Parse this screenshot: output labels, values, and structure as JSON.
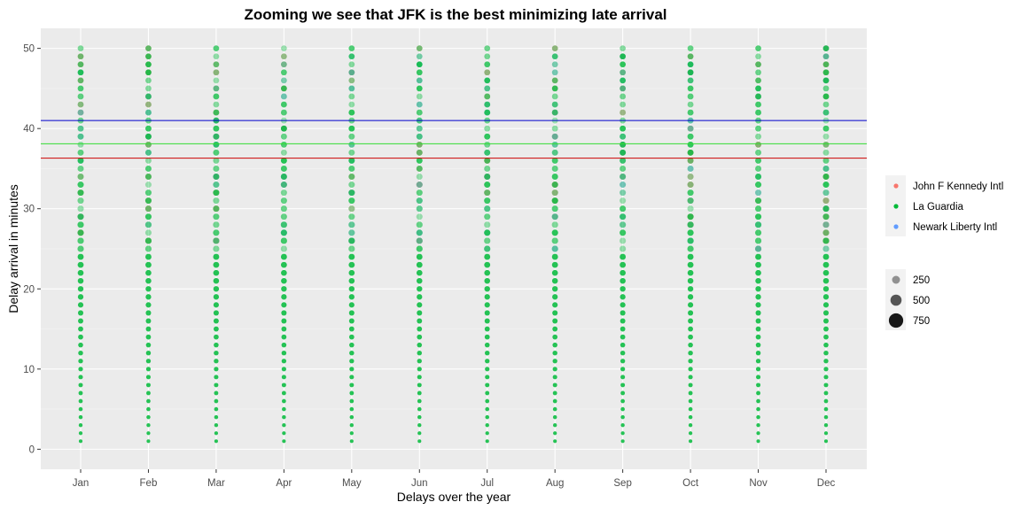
{
  "chart_data": {
    "type": "scatter",
    "title": "Zooming we see that JFK is the best minimizing late arrival",
    "xlabel": "Delays over the year",
    "ylabel": "Delay arrival in minutes",
    "categories": [
      "Jan",
      "Feb",
      "Mar",
      "Apr",
      "May",
      "Jun",
      "Jul",
      "Aug",
      "Sep",
      "Oct",
      "Nov",
      "Dec"
    ],
    "ylim": [
      -2.5,
      52.5
    ],
    "y_ticks": [
      0,
      10,
      20,
      30,
      40,
      50
    ],
    "delay_range": [
      1,
      50
    ],
    "series": [
      {
        "name": "John F Kennedy Intl",
        "color": "#F8766D"
      },
      {
        "name": "La Guardia",
        "color": "#00BA38"
      },
      {
        "name": "Newark Liberty Intl",
        "color": "#619CFF"
      }
    ],
    "size_legend": {
      "values": [
        250,
        500,
        750
      ]
    },
    "reference_lines": [
      {
        "color": "#0000CC",
        "value": 41.0
      },
      {
        "color": "#33DD33",
        "value": 38.1
      },
      {
        "color": "#CC0000",
        "value": 36.3
      }
    ],
    "background": "#EBEBEB",
    "grid": true,
    "legend_position": "right"
  }
}
